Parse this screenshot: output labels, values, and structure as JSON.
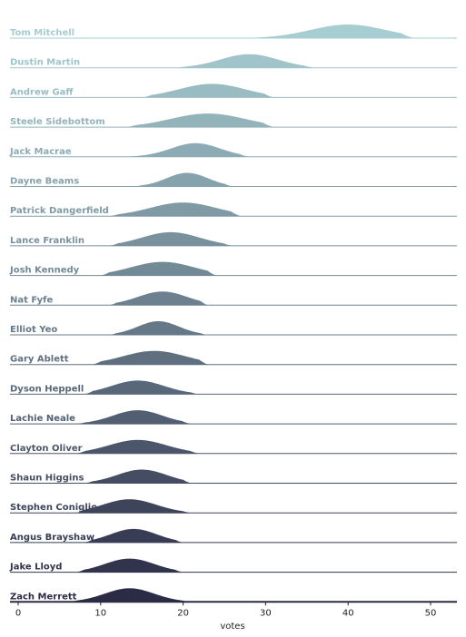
{
  "chart_data": {
    "type": "area",
    "subtype": "ridgeline",
    "title": "",
    "xlabel": "votes",
    "ylabel": "",
    "xlim": [
      -1,
      53
    ],
    "xticks": [
      0,
      10,
      20,
      30,
      40,
      50
    ],
    "grid": false,
    "legend": "none",
    "color_start": "#a6cdd1",
    "color_end": "#2b2b45",
    "series": [
      {
        "name": "Tom Mitchell",
        "mean": 40.0,
        "sd": 4.5,
        "lo": 28,
        "hi": 48
      },
      {
        "name": "Dustin Martin",
        "mean": 28.0,
        "sd": 3.5,
        "lo": 19,
        "hi": 36
      },
      {
        "name": "Andrew Gaff",
        "mean": 23.5,
        "sd": 4.0,
        "lo": 15,
        "hi": 31
      },
      {
        "name": "Steele Sidebottom",
        "mean": 23.0,
        "sd": 4.5,
        "lo": 13,
        "hi": 31
      },
      {
        "name": "Jack Macrae",
        "mean": 21.5,
        "sd": 3.0,
        "lo": 13,
        "hi": 28
      },
      {
        "name": "Dayne Beams",
        "mean": 20.5,
        "sd": 2.5,
        "lo": 14,
        "hi": 26
      },
      {
        "name": "Patrick Dangerfield",
        "mean": 20.0,
        "sd": 4.0,
        "lo": 11,
        "hi": 27
      },
      {
        "name": "Lance Franklin",
        "mean": 18.5,
        "sd": 3.5,
        "lo": 11,
        "hi": 26
      },
      {
        "name": "Josh Kennedy",
        "mean": 17.5,
        "sd": 3.8,
        "lo": 10,
        "hi": 24
      },
      {
        "name": "Nat Fyfe",
        "mean": 17.5,
        "sd": 3.0,
        "lo": 11,
        "hi": 23
      },
      {
        "name": "Elliot Yeo",
        "mean": 17.0,
        "sd": 2.5,
        "lo": 11,
        "hi": 23
      },
      {
        "name": "Gary Ablett",
        "mean": 16.5,
        "sd": 3.8,
        "lo": 9,
        "hi": 23
      },
      {
        "name": "Dyson Heppell",
        "mean": 14.5,
        "sd": 3.2,
        "lo": 8,
        "hi": 22
      },
      {
        "name": "Lachie Neale",
        "mean": 14.5,
        "sd": 3.0,
        "lo": 7,
        "hi": 21
      },
      {
        "name": "Clayton Oliver",
        "mean": 14.5,
        "sd": 3.5,
        "lo": 7,
        "hi": 22
      },
      {
        "name": "Shaun Higgins",
        "mean": 15.0,
        "sd": 3.0,
        "lo": 8,
        "hi": 21
      },
      {
        "name": "Stephen Coniglio",
        "mean": 13.5,
        "sd": 3.2,
        "lo": 7,
        "hi": 21
      },
      {
        "name": "Angus Brayshaw",
        "mean": 14.0,
        "sd": 2.8,
        "lo": 8,
        "hi": 20
      },
      {
        "name": "Jake Lloyd",
        "mean": 13.5,
        "sd": 3.0,
        "lo": 7,
        "hi": 20
      },
      {
        "name": "Zach Merrett",
        "mean": 13.5,
        "sd": 3.0,
        "lo": 6,
        "hi": 21
      }
    ]
  }
}
